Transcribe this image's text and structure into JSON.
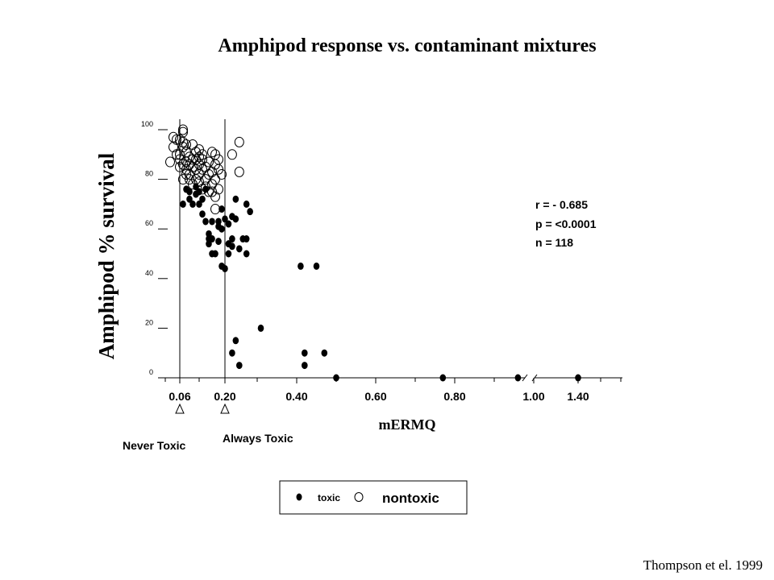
{
  "chart_data": {
    "type": "scatter",
    "title": "Amphipod response vs. contaminant mixtures",
    "xlabel": "mERMQ",
    "ylabel": "Amphipod % survival",
    "x_ticks": [
      "0.06",
      "0.20",
      "0.40",
      "0.60",
      "0.80",
      "1.00",
      "1.40"
    ],
    "y_ticks": [
      "0",
      "20",
      "40",
      "60",
      "80",
      "100"
    ],
    "ylim": [
      0,
      100
    ],
    "axis_break": "between 1.00 and 1.40",
    "grid": false,
    "thresholds": [
      {
        "x": 0.06,
        "label": "Never Toxic"
      },
      {
        "x": 0.2,
        "label": "Always Toxic"
      }
    ],
    "stats": [
      "r = - 0.685",
      "p = <0.0001",
      "n = 118"
    ],
    "legend": {
      "placement": "bottom-center",
      "toxic": "toxic",
      "nontoxic": "nontoxic"
    },
    "series": [
      {
        "name": "toxic",
        "marker": "filled",
        "points": [
          [
            0.07,
            70
          ],
          [
            0.08,
            76
          ],
          [
            0.09,
            75
          ],
          [
            0.09,
            72
          ],
          [
            0.1,
            70
          ],
          [
            0.11,
            77
          ],
          [
            0.11,
            74
          ],
          [
            0.12,
            70
          ],
          [
            0.12,
            75
          ],
          [
            0.13,
            72
          ],
          [
            0.13,
            66
          ],
          [
            0.14,
            76
          ],
          [
            0.14,
            63
          ],
          [
            0.15,
            58
          ],
          [
            0.15,
            56
          ],
          [
            0.15,
            54
          ],
          [
            0.16,
            63
          ],
          [
            0.16,
            56
          ],
          [
            0.16,
            50
          ],
          [
            0.17,
            50
          ],
          [
            0.18,
            63
          ],
          [
            0.18,
            55
          ],
          [
            0.18,
            61
          ],
          [
            0.19,
            60
          ],
          [
            0.19,
            68
          ],
          [
            0.19,
            45
          ],
          [
            0.2,
            44
          ],
          [
            0.2,
            64
          ],
          [
            0.21,
            62
          ],
          [
            0.21,
            50
          ],
          [
            0.21,
            54
          ],
          [
            0.22,
            65
          ],
          [
            0.22,
            56
          ],
          [
            0.22,
            53
          ],
          [
            0.23,
            64
          ],
          [
            0.23,
            72
          ],
          [
            0.24,
            52
          ],
          [
            0.25,
            56
          ],
          [
            0.26,
            70
          ],
          [
            0.26,
            56
          ],
          [
            0.26,
            50
          ],
          [
            0.27,
            67
          ],
          [
            0.22,
            10
          ],
          [
            0.23,
            15
          ],
          [
            0.24,
            5
          ],
          [
            0.3,
            20
          ],
          [
            0.41,
            45
          ],
          [
            0.45,
            45
          ],
          [
            0.42,
            10
          ],
          [
            0.42,
            5
          ],
          [
            0.47,
            10
          ],
          [
            0.5,
            0
          ],
          [
            0.77,
            0
          ],
          [
            0.96,
            0
          ],
          [
            1.4,
            0
          ]
        ]
      },
      {
        "name": "nontoxic",
        "marker": "open",
        "points": [
          [
            0.03,
            87
          ],
          [
            0.04,
            93
          ],
          [
            0.04,
            97
          ],
          [
            0.05,
            96
          ],
          [
            0.05,
            90
          ],
          [
            0.06,
            88
          ],
          [
            0.06,
            96
          ],
          [
            0.06,
            85
          ],
          [
            0.07,
            93
          ],
          [
            0.07,
            95
          ],
          [
            0.07,
            100
          ],
          [
            0.07,
            99
          ],
          [
            0.07,
            80
          ],
          [
            0.08,
            94
          ],
          [
            0.08,
            91
          ],
          [
            0.08,
            84
          ],
          [
            0.08,
            82
          ],
          [
            0.09,
            89
          ],
          [
            0.09,
            86
          ],
          [
            0.09,
            82
          ],
          [
            0.1,
            94
          ],
          [
            0.1,
            85
          ],
          [
            0.1,
            78
          ],
          [
            0.11,
            88
          ],
          [
            0.11,
            84
          ],
          [
            0.11,
            80
          ],
          [
            0.12,
            89
          ],
          [
            0.12,
            86
          ],
          [
            0.12,
            82
          ],
          [
            0.12,
            79
          ],
          [
            0.13,
            84
          ],
          [
            0.13,
            88
          ],
          [
            0.14,
            85
          ],
          [
            0.14,
            80
          ],
          [
            0.15,
            87
          ],
          [
            0.15,
            82
          ],
          [
            0.16,
            91
          ],
          [
            0.16,
            78
          ],
          [
            0.16,
            75
          ],
          [
            0.17,
            86
          ],
          [
            0.17,
            80
          ],
          [
            0.17,
            73
          ],
          [
            0.17,
            68
          ],
          [
            0.18,
            84
          ],
          [
            0.18,
            76
          ],
          [
            0.19,
            82
          ],
          [
            0.22,
            90
          ],
          [
            0.24,
            95
          ],
          [
            0.24,
            83
          ],
          [
            0.1,
            88
          ],
          [
            0.09,
            80
          ],
          [
            0.13,
            90
          ],
          [
            0.14,
            77
          ],
          [
            0.11,
            91
          ],
          [
            0.08,
            87
          ],
          [
            0.15,
            75
          ],
          [
            0.06,
            90
          ],
          [
            0.12,
            92
          ],
          [
            0.17,
            90
          ],
          [
            0.16,
            83
          ],
          [
            0.18,
            88
          ],
          [
            0.13,
            76
          ],
          [
            0.07,
            86
          ]
        ]
      }
    ]
  },
  "citation": "Thompson et el. 1999"
}
